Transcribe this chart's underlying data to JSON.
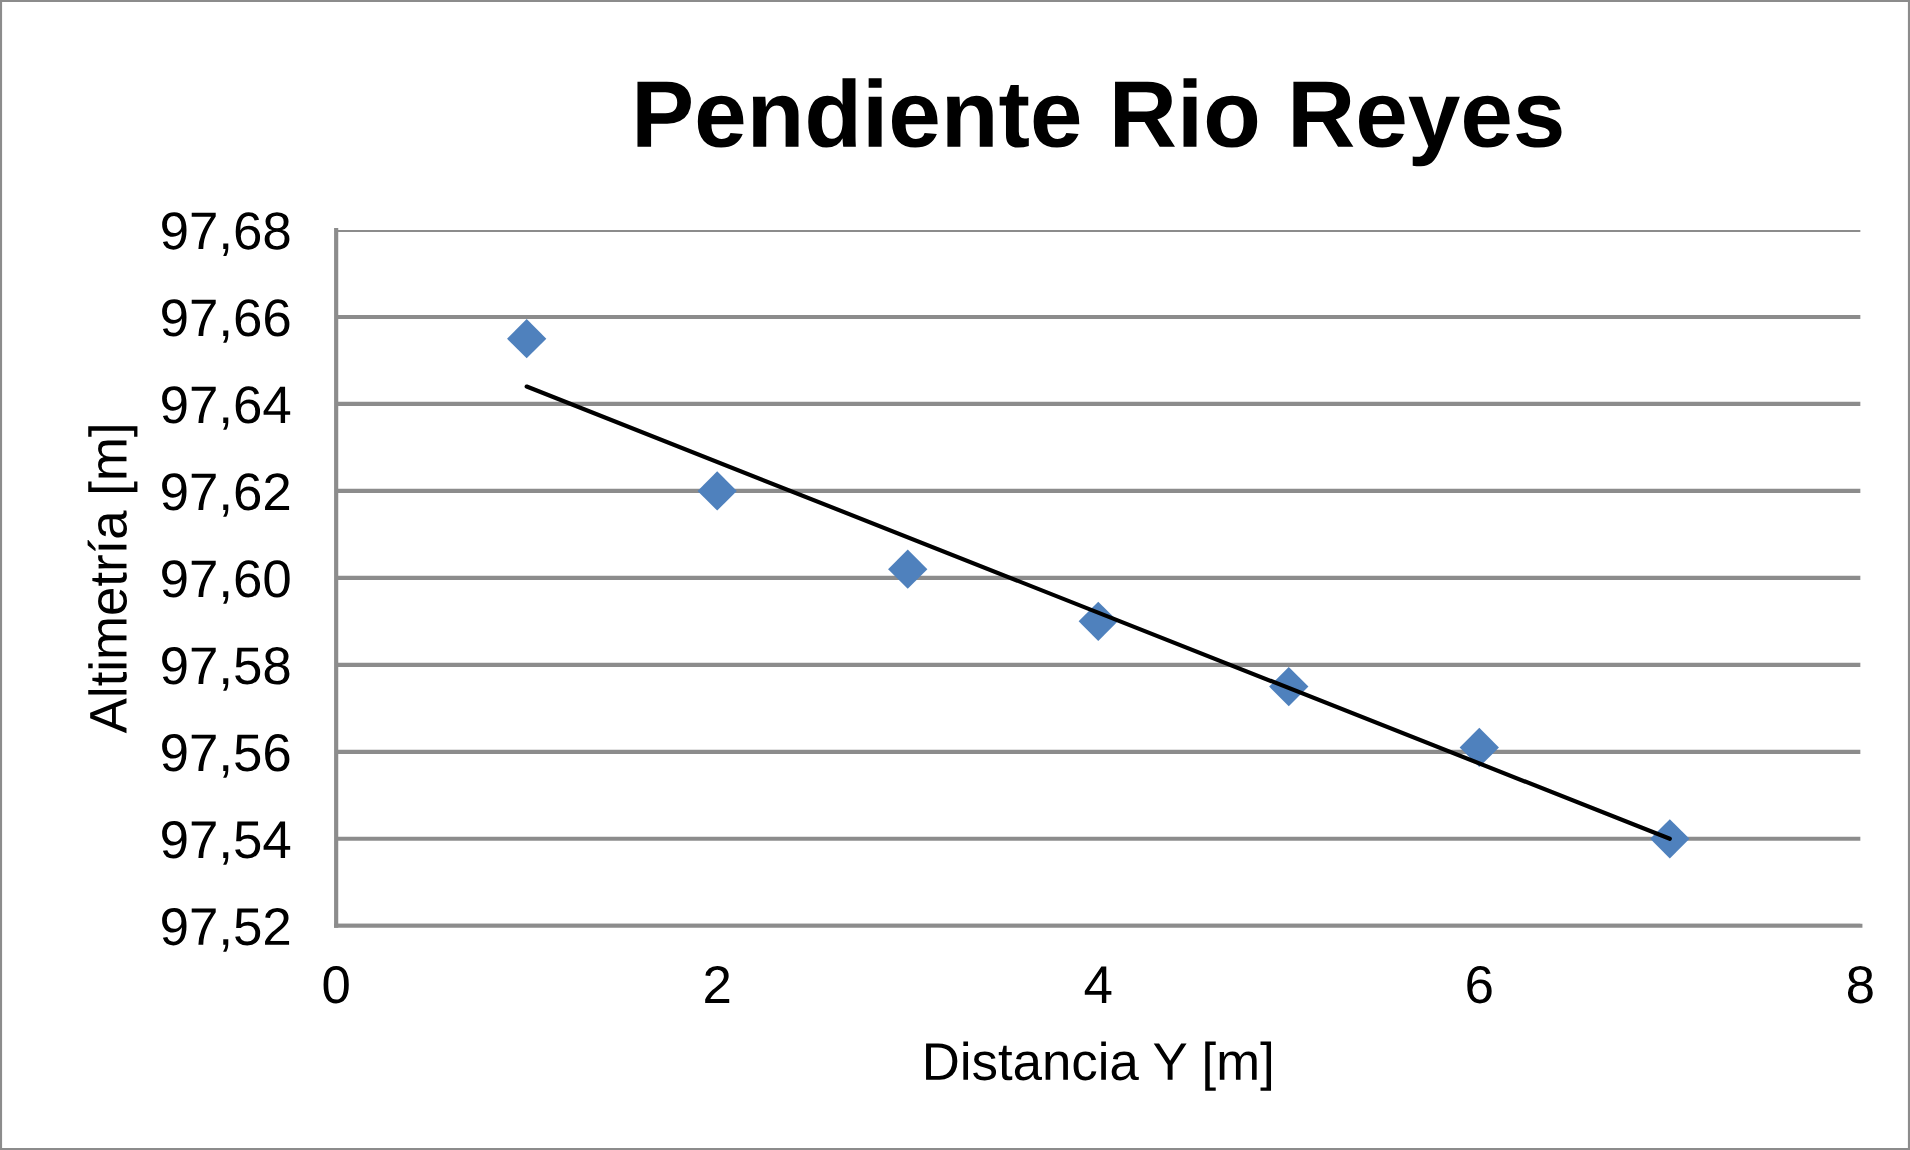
{
  "chart_data": {
    "type": "scatter",
    "title": "Pendiente Rio Reyes",
    "xlabel": "Distancia Y [m]",
    "ylabel": "Altimetría [m]",
    "series": [
      {
        "color": "#4f81bd",
        "marker": "diamond",
        "x": [
          1,
          2,
          3,
          4,
          5,
          6,
          7
        ],
        "values": [
          97.655,
          97.62,
          97.602,
          97.59,
          97.575,
          97.561,
          97.54
        ]
      },
      {
        "type": "line",
        "color": "#000000",
        "marker": "none",
        "line_style": "solid",
        "x": [
          1,
          7
        ],
        "values": [
          97.644,
          97.54
        ]
      }
    ],
    "xlim": [
      0,
      8
    ],
    "xticks": [
      0,
      2,
      4,
      6,
      8
    ],
    "ylim": [
      97.52,
      97.68
    ],
    "yticks": [
      {
        "value": 97.52,
        "label": "97,52"
      },
      {
        "value": 97.54,
        "label": "97,54"
      },
      {
        "value": 97.56,
        "label": "97,56"
      },
      {
        "value": 97.58,
        "label": "97,58"
      },
      {
        "value": 97.6,
        "label": "97,60"
      },
      {
        "value": 97.62,
        "label": "97,62"
      },
      {
        "value": 97.64,
        "label": "97,64"
      },
      {
        "value": 97.66,
        "label": "97,66"
      },
      {
        "value": 97.68,
        "label": "97,68"
      }
    ],
    "grid": "y"
  }
}
